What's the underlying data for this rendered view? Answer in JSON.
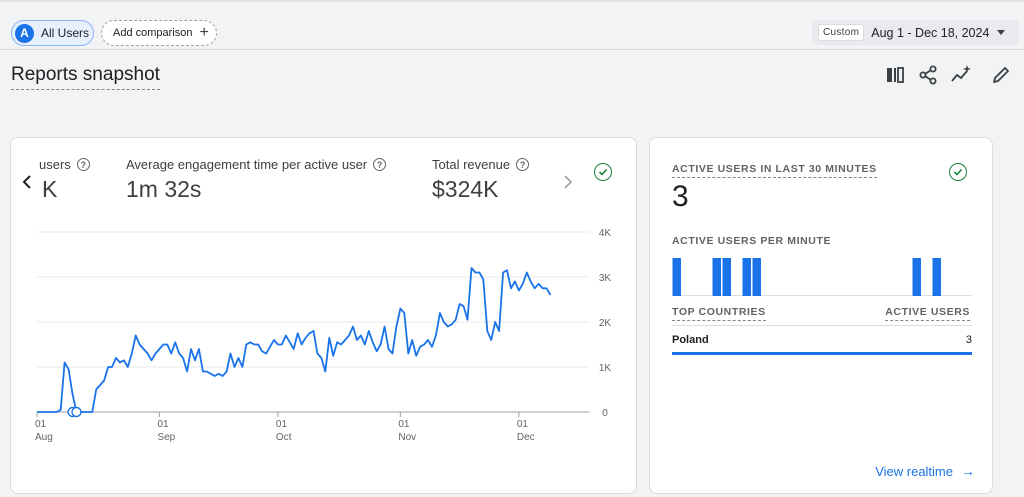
{
  "filters": {
    "segment_avatar": "A",
    "segment_label": "All Users",
    "add_comparison_label": "Add comparison",
    "add_icon": "plus-icon"
  },
  "date_range": {
    "mode": "Custom",
    "range": "Aug 1 - Dec 18, 2024",
    "caret_icon": "caret-down-icon"
  },
  "page": {
    "title": "Reports snapshot"
  },
  "toolbar": {
    "icons": [
      "compare-icon",
      "share-icon",
      "insights-icon",
      "edit-icon"
    ]
  },
  "metrics_card": {
    "prev_icon": "chevron-left-icon",
    "next_icon": "chevron-right-icon",
    "metrics": [
      {
        "label": "users",
        "value": "K",
        "help": "?"
      },
      {
        "label": "Average engagement time per active user",
        "value": "1m 32s",
        "help": "?"
      },
      {
        "label": "Total revenue",
        "value": "$324K",
        "help": "?"
      }
    ],
    "status_icon": "check-circle-icon"
  },
  "chart_data": {
    "type": "line",
    "x_ticks": [
      {
        "day": "01",
        "month": "Aug",
        "date": "2024-08-01"
      },
      {
        "day": "01",
        "month": "Sep",
        "date": "2024-09-01"
      },
      {
        "day": "01",
        "month": "Oct",
        "date": "2024-10-01"
      },
      {
        "day": "01",
        "month": "Nov",
        "date": "2024-11-01"
      },
      {
        "day": "01",
        "month": "Dec",
        "date": "2024-12-01"
      }
    ],
    "y_ticks": [
      "4K",
      "3K",
      "2K",
      "1K",
      "0"
    ],
    "ylim": [
      0,
      4000
    ],
    "x_range": [
      "2024-08-01",
      "2024-12-18"
    ],
    "series_color": "#1a73e8",
    "annotation_markers": [
      "2024-08-10",
      "2024-08-11"
    ],
    "series": [
      {
        "values": [
          0,
          0,
          0,
          0,
          0,
          0,
          50,
          1100,
          950,
          400,
          0,
          0,
          0,
          0,
          0,
          500,
          600,
          700,
          1000,
          1000,
          1200,
          1100,
          1150,
          1000,
          1300,
          1700,
          1500,
          1400,
          1300,
          1150,
          1300,
          1400,
          1500,
          1500,
          1300,
          1550,
          1300,
          1200,
          900,
          1400,
          1150,
          1400,
          900,
          900,
          850,
          800,
          850,
          800,
          900,
          1300,
          1000,
          1200,
          1000,
          1500,
          1550,
          1500,
          1500,
          1350,
          1300,
          1450,
          1600,
          1500,
          1500,
          1700,
          1550,
          1400,
          1750,
          1500,
          1650,
          1750,
          1800,
          1300,
          1200,
          900,
          1650,
          1250,
          1550,
          1500,
          1600,
          1700,
          1900,
          1600,
          1700,
          1500,
          1800,
          1550,
          1350,
          1500,
          1900,
          1400,
          1300,
          1900,
          2300,
          2200,
          1300,
          1600,
          1250,
          1450,
          1500,
          1600,
          1450,
          1700,
          2200,
          2000,
          1900,
          1950,
          2050,
          2400,
          2350,
          2050,
          3200,
          3100,
          3100,
          2950,
          1800,
          1600,
          2000,
          1800,
          3100,
          3150,
          2750,
          2900,
          2700,
          2850,
          3100,
          2900,
          2750,
          2850,
          2750,
          2750,
          2600
        ]
      }
    ]
  },
  "realtime_card": {
    "title": "ACTIVE USERS IN LAST 30 MINUTES",
    "value": "3",
    "per_minute_label": "ACTIVE USERS PER MINUTE",
    "per_minute_values": [
      1,
      0,
      0,
      0,
      1,
      1,
      0,
      1,
      1,
      0,
      0,
      0,
      0,
      0,
      0,
      0,
      0,
      0,
      0,
      0,
      0,
      0,
      0,
      0,
      1,
      0,
      1,
      0,
      0,
      0
    ],
    "bar_color": "#1a73e8",
    "col_country": "TOP COUNTRIES",
    "col_users": "ACTIVE USERS",
    "rows": [
      {
        "country": "Poland",
        "users": "3",
        "share": 1.0
      }
    ],
    "link": "View realtime",
    "link_icon": "arrow-right-icon",
    "status_icon": "check-circle-icon"
  }
}
